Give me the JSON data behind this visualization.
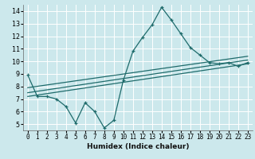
{
  "xlabel": "Humidex (Indice chaleur)",
  "bg_color": "#cce8ec",
  "line_color": "#1e6b6b",
  "grid_color": "#ffffff",
  "xlim": [
    -0.5,
    23.5
  ],
  "ylim": [
    4.5,
    14.5
  ],
  "xticks": [
    0,
    1,
    2,
    3,
    4,
    5,
    6,
    7,
    8,
    9,
    10,
    11,
    12,
    13,
    14,
    15,
    16,
    17,
    18,
    19,
    20,
    21,
    22,
    23
  ],
  "yticks": [
    5,
    6,
    7,
    8,
    9,
    10,
    11,
    12,
    13,
    14
  ],
  "line1_x": [
    0,
    1,
    2,
    3,
    4,
    5,
    6,
    7,
    8,
    9,
    10,
    11,
    12,
    13,
    14,
    15,
    16,
    17,
    18,
    19,
    20,
    21,
    22,
    23
  ],
  "line1_y": [
    8.9,
    7.2,
    7.2,
    7.0,
    6.4,
    5.1,
    6.7,
    6.0,
    4.7,
    5.3,
    8.5,
    10.8,
    11.9,
    12.9,
    14.3,
    13.3,
    12.2,
    11.1,
    10.5,
    9.9,
    9.8,
    9.9,
    9.6,
    9.9
  ],
  "line2_x": [
    0,
    23
  ],
  "line2_y": [
    7.5,
    10.1
  ],
  "line3_x": [
    0,
    23
  ],
  "line3_y": [
    7.2,
    9.8
  ],
  "line4_x": [
    0,
    23
  ],
  "line4_y": [
    7.9,
    10.4
  ],
  "tick_fontsize": 5.5,
  "xlabel_fontsize": 6.5
}
